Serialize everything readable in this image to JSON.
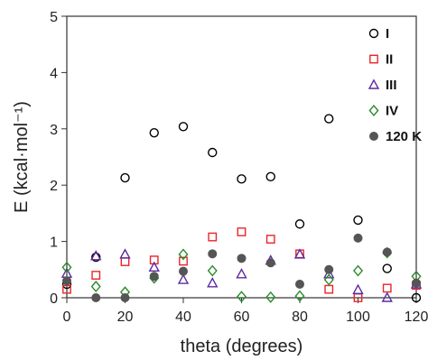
{
  "chart_data": {
    "type": "scatter",
    "xlabel": "theta (degrees)",
    "ylabel": "E (kcal·mol⁻¹)",
    "xlim": [
      0,
      120
    ],
    "ylim": [
      0,
      5
    ],
    "xticks": [
      0,
      20,
      40,
      60,
      80,
      100,
      120
    ],
    "yticks": [
      0,
      1,
      2,
      3,
      4,
      5
    ],
    "grid": false,
    "legend_position": "top-right",
    "series": [
      {
        "name": "I",
        "marker": "circle-open",
        "color": "#000000",
        "x": [
          0,
          10,
          20,
          30,
          40,
          50,
          60,
          70,
          80,
          90,
          100,
          110,
          120
        ],
        "y": [
          0.24,
          0.72,
          2.13,
          2.93,
          3.04,
          2.58,
          2.11,
          2.15,
          1.31,
          3.18,
          1.38,
          0.52,
          0.0
        ]
      },
      {
        "name": "II",
        "marker": "square-open",
        "color": "#e8262a",
        "x": [
          0,
          10,
          20,
          30,
          40,
          50,
          60,
          70,
          80,
          90,
          100,
          110,
          120
        ],
        "y": [
          0.15,
          0.4,
          0.64,
          0.67,
          0.65,
          1.08,
          1.17,
          1.04,
          0.78,
          0.15,
          0.0,
          0.17,
          0.22
        ]
      },
      {
        "name": "III",
        "marker": "triangle-open",
        "color": "#5b2aa0",
        "x": [
          0,
          10,
          20,
          30,
          40,
          50,
          60,
          70,
          80,
          90,
          100,
          110,
          120
        ],
        "y": [
          0.43,
          0.74,
          0.77,
          0.54,
          0.32,
          0.26,
          0.42,
          0.66,
          0.77,
          0.42,
          0.14,
          0.0,
          0.24
        ]
      },
      {
        "name": "IV",
        "marker": "diamond-open",
        "color": "#2a8a2a",
        "x": [
          0,
          10,
          20,
          30,
          40,
          50,
          60,
          70,
          80,
          90,
          100,
          110,
          120
        ],
        "y": [
          0.54,
          0.2,
          0.1,
          0.35,
          0.77,
          0.48,
          0.02,
          0.01,
          0.03,
          0.32,
          0.48,
          0.8,
          0.38
        ]
      },
      {
        "name": "120 K",
        "marker": "circle-filled",
        "color": "#555555",
        "x": [
          0,
          10,
          20,
          30,
          40,
          50,
          60,
          70,
          80,
          90,
          100,
          110,
          120
        ],
        "y": [
          0.3,
          0.0,
          0.0,
          0.38,
          0.47,
          0.78,
          0.7,
          0.62,
          0.24,
          0.5,
          1.06,
          0.81,
          0.26
        ]
      }
    ]
  }
}
